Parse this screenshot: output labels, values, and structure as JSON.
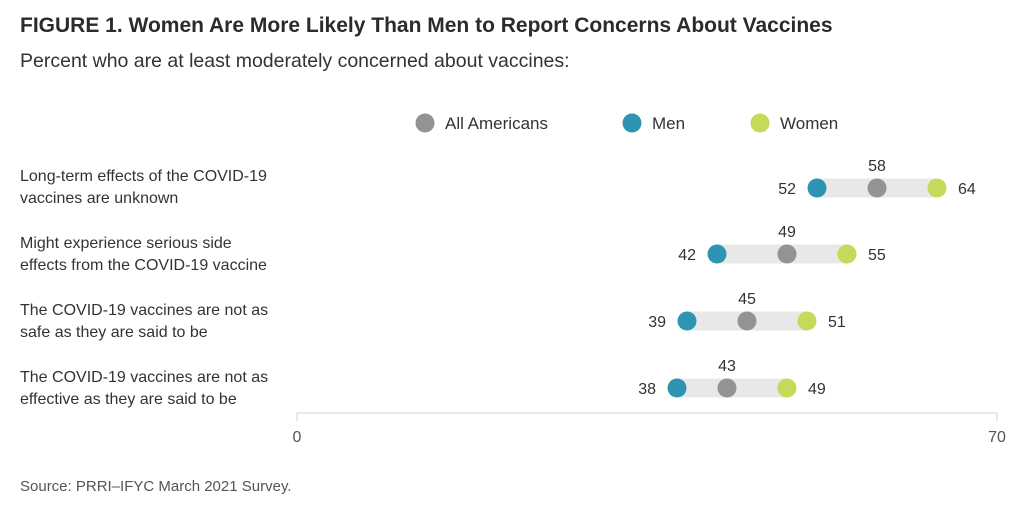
{
  "figure": {
    "title": "FIGURE 1.  Women Are More Likely Than Men to Report Concerns About Vaccines",
    "subtitle": "Percent who are at least moderately concerned about vaccines:",
    "source": "Source: PRRI–IFYC March 2021 Survey."
  },
  "colors": {
    "all": "#939393",
    "men": "#2f93b3",
    "women": "#c5d95a",
    "track": "#e8e8e8",
    "axis": "#cfcfcf"
  },
  "chart_data": {
    "type": "dot",
    "xlim": [
      0,
      70
    ],
    "x_ticks": [
      0,
      70
    ],
    "legend_position": "top",
    "categories": [
      "Long-term effects of the COVID-19 vaccines are unknown",
      "Might experience serious side effects from the COVID-19 vaccine",
      "The COVID-19 vaccines are not as safe as they are said to be",
      "The COVID-19 vaccines are not as effective as they are said to be"
    ],
    "category_lines": [
      [
        "Long-term effects of the COVID-19",
        "vaccines are unknown"
      ],
      [
        "Might experience serious side",
        "effects from the COVID-19 vaccine"
      ],
      [
        "The COVID-19 vaccines are not as",
        "safe as they are said to be"
      ],
      [
        "The COVID-19 vaccines are not as",
        "effective as they are said to be"
      ]
    ],
    "series": [
      {
        "name": "All Americans",
        "key": "all",
        "values": [
          58,
          49,
          45,
          43
        ]
      },
      {
        "name": "Men",
        "key": "men",
        "values": [
          52,
          42,
          39,
          38
        ]
      },
      {
        "name": "Women",
        "key": "women",
        "values": [
          64,
          55,
          51,
          49
        ]
      }
    ]
  }
}
